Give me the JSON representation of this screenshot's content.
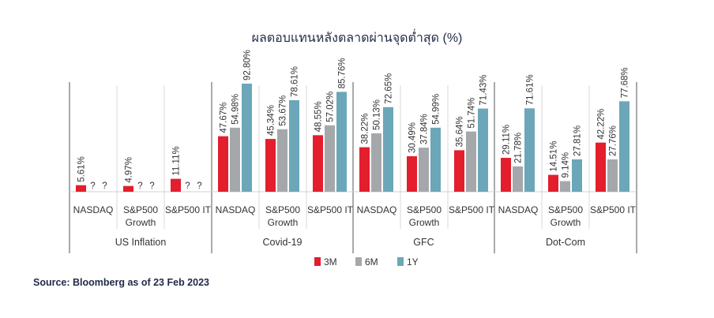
{
  "chart_data": {
    "type": "bar",
    "title": "ผลตอบแทนหลังตลาดผ่านจุดต่ำสุด (%)",
    "source": "Source: Bloomberg as of 23 Feb 2023",
    "unit_suffix": "%",
    "missing_label": "?",
    "ylim": [
      0,
      100
    ],
    "grid": false,
    "legend_position": "bottom",
    "colors": {
      "3M": "#e31e2d",
      "6M": "#a5a8ab",
      "1Y": "#6ba7b8"
    },
    "legend": [
      {
        "key": "3M",
        "label": "3M"
      },
      {
        "key": "6M",
        "label": "6M"
      },
      {
        "key": "1Y",
        "label": "1Y"
      }
    ],
    "groups": [
      {
        "name": "US Inflation",
        "categories": [
          {
            "label": [
              "NASDAQ"
            ],
            "values": {
              "3M": 5.61,
              "6M": null,
              "1Y": null
            }
          },
          {
            "label": [
              "S&P500",
              "Growth"
            ],
            "values": {
              "3M": 4.97,
              "6M": null,
              "1Y": null
            }
          },
          {
            "label": [
              "S&P500 IT"
            ],
            "values": {
              "3M": 11.11,
              "6M": null,
              "1Y": null
            }
          }
        ]
      },
      {
        "name": "Covid-19",
        "categories": [
          {
            "label": [
              "NASDAQ"
            ],
            "values": {
              "3M": 47.67,
              "6M": 54.98,
              "1Y": 92.8
            }
          },
          {
            "label": [
              "S&P500",
              "Growth"
            ],
            "values": {
              "3M": 45.34,
              "6M": 53.67,
              "1Y": 78.61
            }
          },
          {
            "label": [
              "S&P500 IT"
            ],
            "values": {
              "3M": 48.55,
              "6M": 57.02,
              "1Y": 85.76
            }
          }
        ]
      },
      {
        "name": "GFC",
        "categories": [
          {
            "label": [
              "NASDAQ"
            ],
            "values": {
              "3M": 38.22,
              "6M": 50.13,
              "1Y": 72.65
            }
          },
          {
            "label": [
              "S&P500",
              "Growth"
            ],
            "values": {
              "3M": 30.49,
              "6M": 37.84,
              "1Y": 54.99
            }
          },
          {
            "label": [
              "S&P500 IT"
            ],
            "values": {
              "3M": 35.64,
              "6M": 51.74,
              "1Y": 71.43
            }
          }
        ]
      },
      {
        "name": "Dot-Com",
        "categories": [
          {
            "label": [
              "NASDAQ"
            ],
            "values": {
              "3M": 29.11,
              "6M": 21.78,
              "1Y": 71.61
            }
          },
          {
            "label": [
              "S&P500",
              "Growth"
            ],
            "values": {
              "3M": 14.51,
              "6M": 9.14,
              "1Y": 27.81
            }
          },
          {
            "label": [
              "S&P500 IT"
            ],
            "values": {
              "3M": 42.22,
              "6M": 27.76,
              "1Y": 77.68
            }
          }
        ]
      }
    ]
  }
}
